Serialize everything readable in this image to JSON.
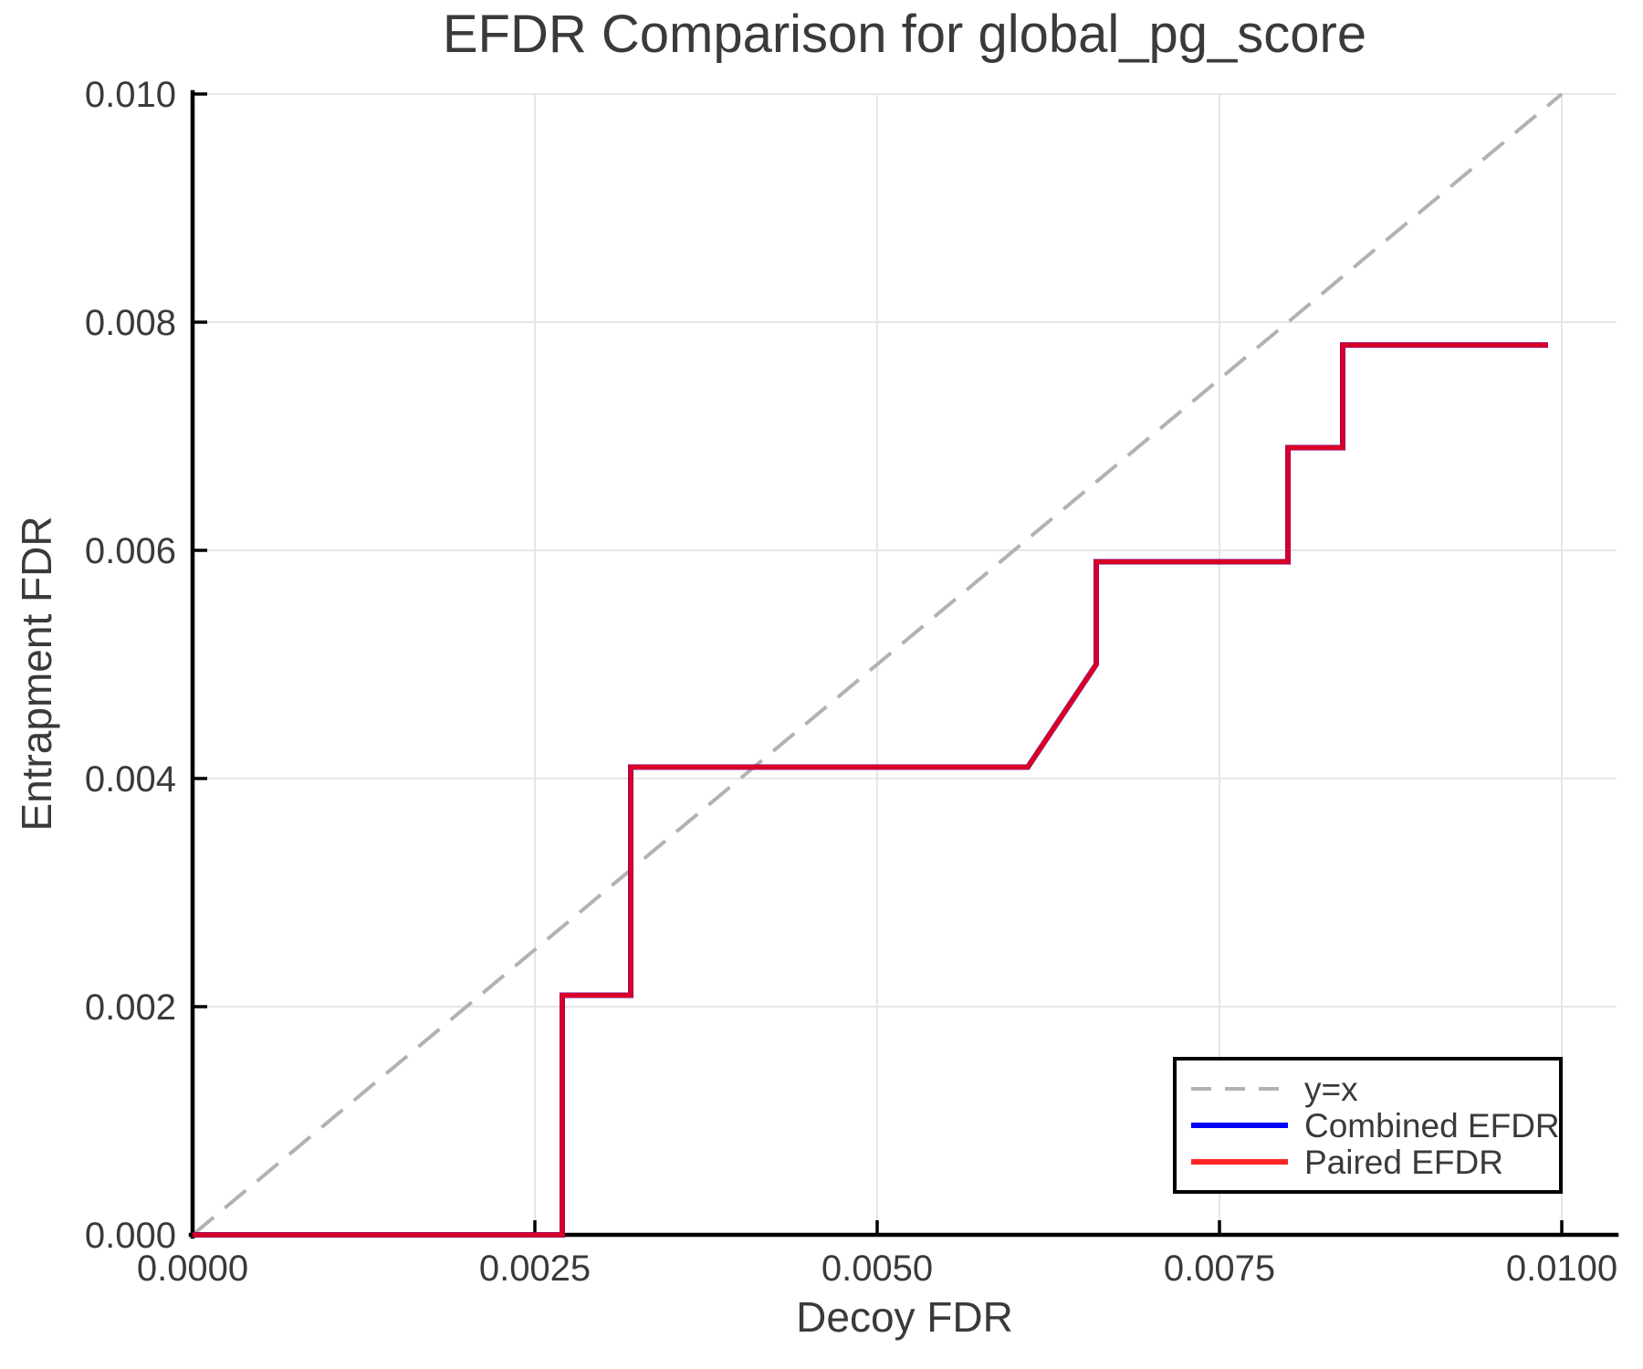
{
  "figure": {
    "title": "EFDR Comparison for global_pg_score",
    "xlabel": "Decoy FDR",
    "ylabel": "Entrapment FDR"
  },
  "legend": {
    "items": [
      {
        "label": "y=x",
        "color": "#b2b2b2",
        "style": "dashed"
      },
      {
        "label": "Combined EFDR",
        "color": "#0000ff",
        "style": "solid"
      },
      {
        "label": "Paired EFDR",
        "color": "#ff0000",
        "style": "solid"
      }
    ]
  },
  "chart_data": {
    "type": "line",
    "title": "EFDR Comparison for global_pg_score",
    "xlabel": "Decoy FDR",
    "ylabel": "Entrapment FDR",
    "xlim": [
      0.0,
      0.0104
    ],
    "ylim": [
      0.0,
      0.01
    ],
    "grid": true,
    "legend_position": "lower right",
    "text_color": "#3a3a3a",
    "grid_color": "#e6e6e6",
    "xticks": {
      "values": [
        0.0,
        0.0025,
        0.005,
        0.0075,
        0.01
      ],
      "labels": [
        "0.0000",
        "0.0025",
        "0.0050",
        "0.0075",
        "0.0100"
      ]
    },
    "yticks": {
      "values": [
        0.0,
        0.002,
        0.004,
        0.006,
        0.008,
        0.01
      ],
      "labels": [
        "0.000",
        "0.002",
        "0.004",
        "0.006",
        "0.008",
        "0.010"
      ]
    },
    "reference_line": {
      "name": "y=x",
      "from": [
        0.0,
        0.0
      ],
      "to": [
        0.01,
        0.01
      ],
      "color": "#b2b2b2",
      "style": "dashed"
    },
    "series": [
      {
        "name": "Combined EFDR",
        "color": "#0000ff",
        "opacity": 1,
        "width": 6,
        "visibility": "fully overlapped by Paired EFDR (identical curve)",
        "x": [
          0.0,
          0.0027,
          0.0027,
          0.0032,
          0.0032,
          0.0061,
          0.0066,
          0.0066,
          0.008,
          0.008,
          0.0084,
          0.0084,
          0.0099
        ],
        "y": [
          0.0,
          0.0,
          0.0021,
          0.0021,
          0.0041,
          0.0041,
          0.005,
          0.0059,
          0.0059,
          0.0069,
          0.0069,
          0.0078,
          0.0078
        ]
      },
      {
        "name": "Paired EFDR",
        "color": "#ff0000",
        "opacity": 0.85,
        "width": 5.5,
        "x": [
          0.0,
          0.0027,
          0.0027,
          0.0032,
          0.0032,
          0.0061,
          0.0066,
          0.0066,
          0.008,
          0.008,
          0.0084,
          0.0084,
          0.0099
        ],
        "y": [
          0.0,
          0.0,
          0.0021,
          0.0021,
          0.0041,
          0.0041,
          0.005,
          0.0059,
          0.0059,
          0.0069,
          0.0069,
          0.0078,
          0.0078
        ]
      }
    ]
  }
}
